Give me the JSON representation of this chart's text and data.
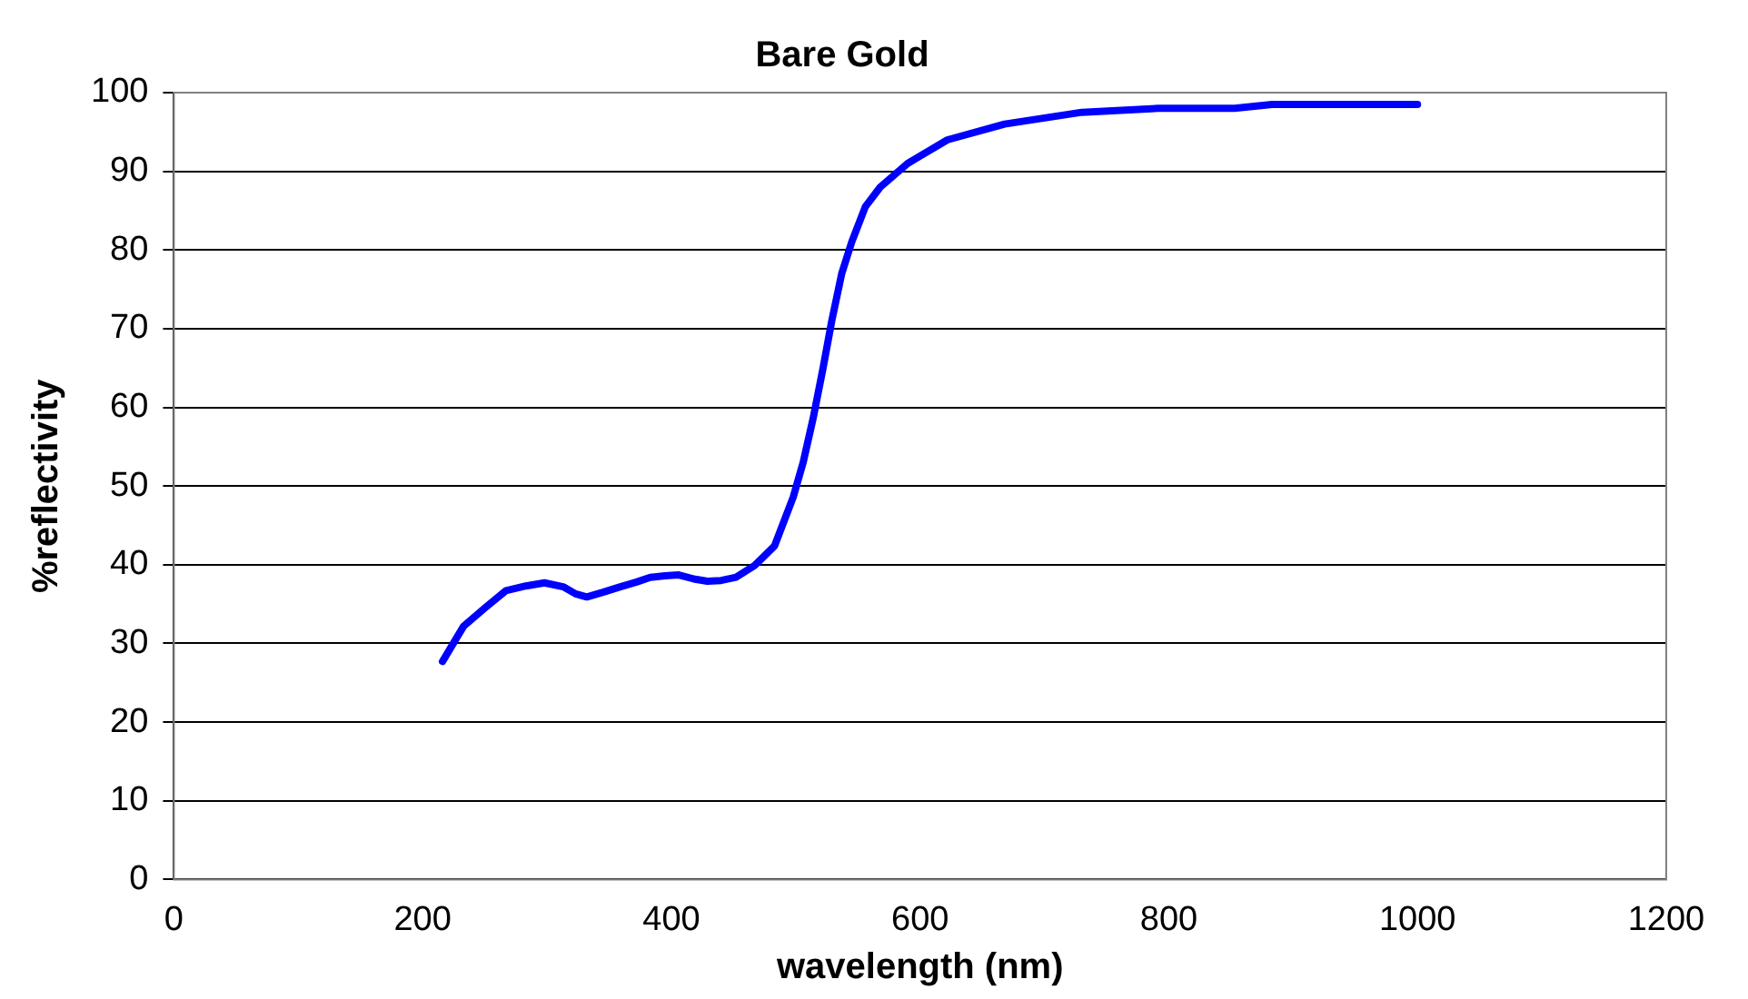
{
  "chart_data": {
    "type": "line",
    "title": "Bare Gold",
    "xlabel": "wavelength (nm)",
    "ylabel": "%reflectivity",
    "series": [
      {
        "color": "#0000ff",
        "x": [
          216,
          233,
          250,
          267,
          283,
          298,
          313,
          323,
          332,
          345,
          359,
          372,
          383,
          395,
          406,
          418,
          429,
          440,
          452,
          467,
          483,
          498,
          506,
          514,
          522,
          529,
          537,
          545,
          556,
          568,
          590,
          622,
          668,
          730,
          792,
          853,
          883,
          1000
        ],
        "values": [
          27.7,
          32.2,
          34.5,
          36.7,
          37.3,
          37.7,
          37.2,
          36.3,
          35.9,
          36.5,
          37.2,
          37.8,
          38.4,
          38.6,
          38.7,
          38.2,
          37.9,
          38.0,
          38.4,
          39.9,
          42.4,
          48.6,
          53,
          58.6,
          65,
          71,
          77,
          81,
          85.5,
          88,
          91,
          94,
          96,
          97.5,
          98,
          98,
          98.5,
          98.5
        ]
      }
    ],
    "xlim": [
      0,
      1200
    ],
    "xticks": [
      0,
      200,
      400,
      600,
      800,
      1000,
      1200
    ],
    "ylim": [
      0,
      100
    ],
    "yticks": [
      0,
      10,
      20,
      30,
      40,
      50,
      60,
      70,
      80,
      90,
      100
    ],
    "grid": "y",
    "legend": false,
    "marker": "none",
    "line_style": "solid"
  }
}
